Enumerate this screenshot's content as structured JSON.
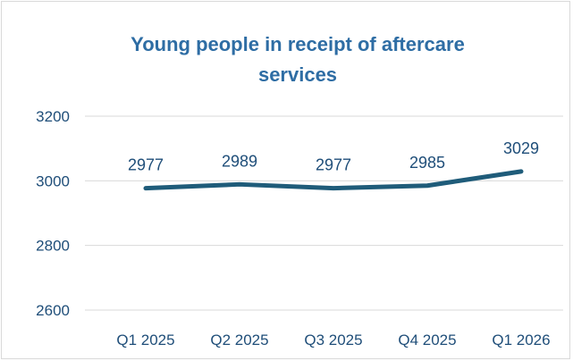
{
  "chart_data": {
    "type": "line",
    "title_lines": [
      "Young people in receipt of aftercare",
      "services"
    ],
    "categories": [
      "Q1 2025",
      "Q2 2025",
      "Q3 2025",
      "Q4 2025",
      "Q1 2026"
    ],
    "series": [
      {
        "values": [
          2977,
          2989,
          2977,
          2985,
          3029
        ],
        "color": "#1f5c7a"
      }
    ],
    "yticks": [
      2600,
      2800,
      3000,
      3200
    ],
    "ylim": [
      2600,
      3200
    ],
    "grid": true,
    "data_labels": true,
    "legend": "none",
    "gridline_color": "#d9d9d9",
    "text_color": "#1f4e79",
    "title_color": "#2e6da4"
  }
}
